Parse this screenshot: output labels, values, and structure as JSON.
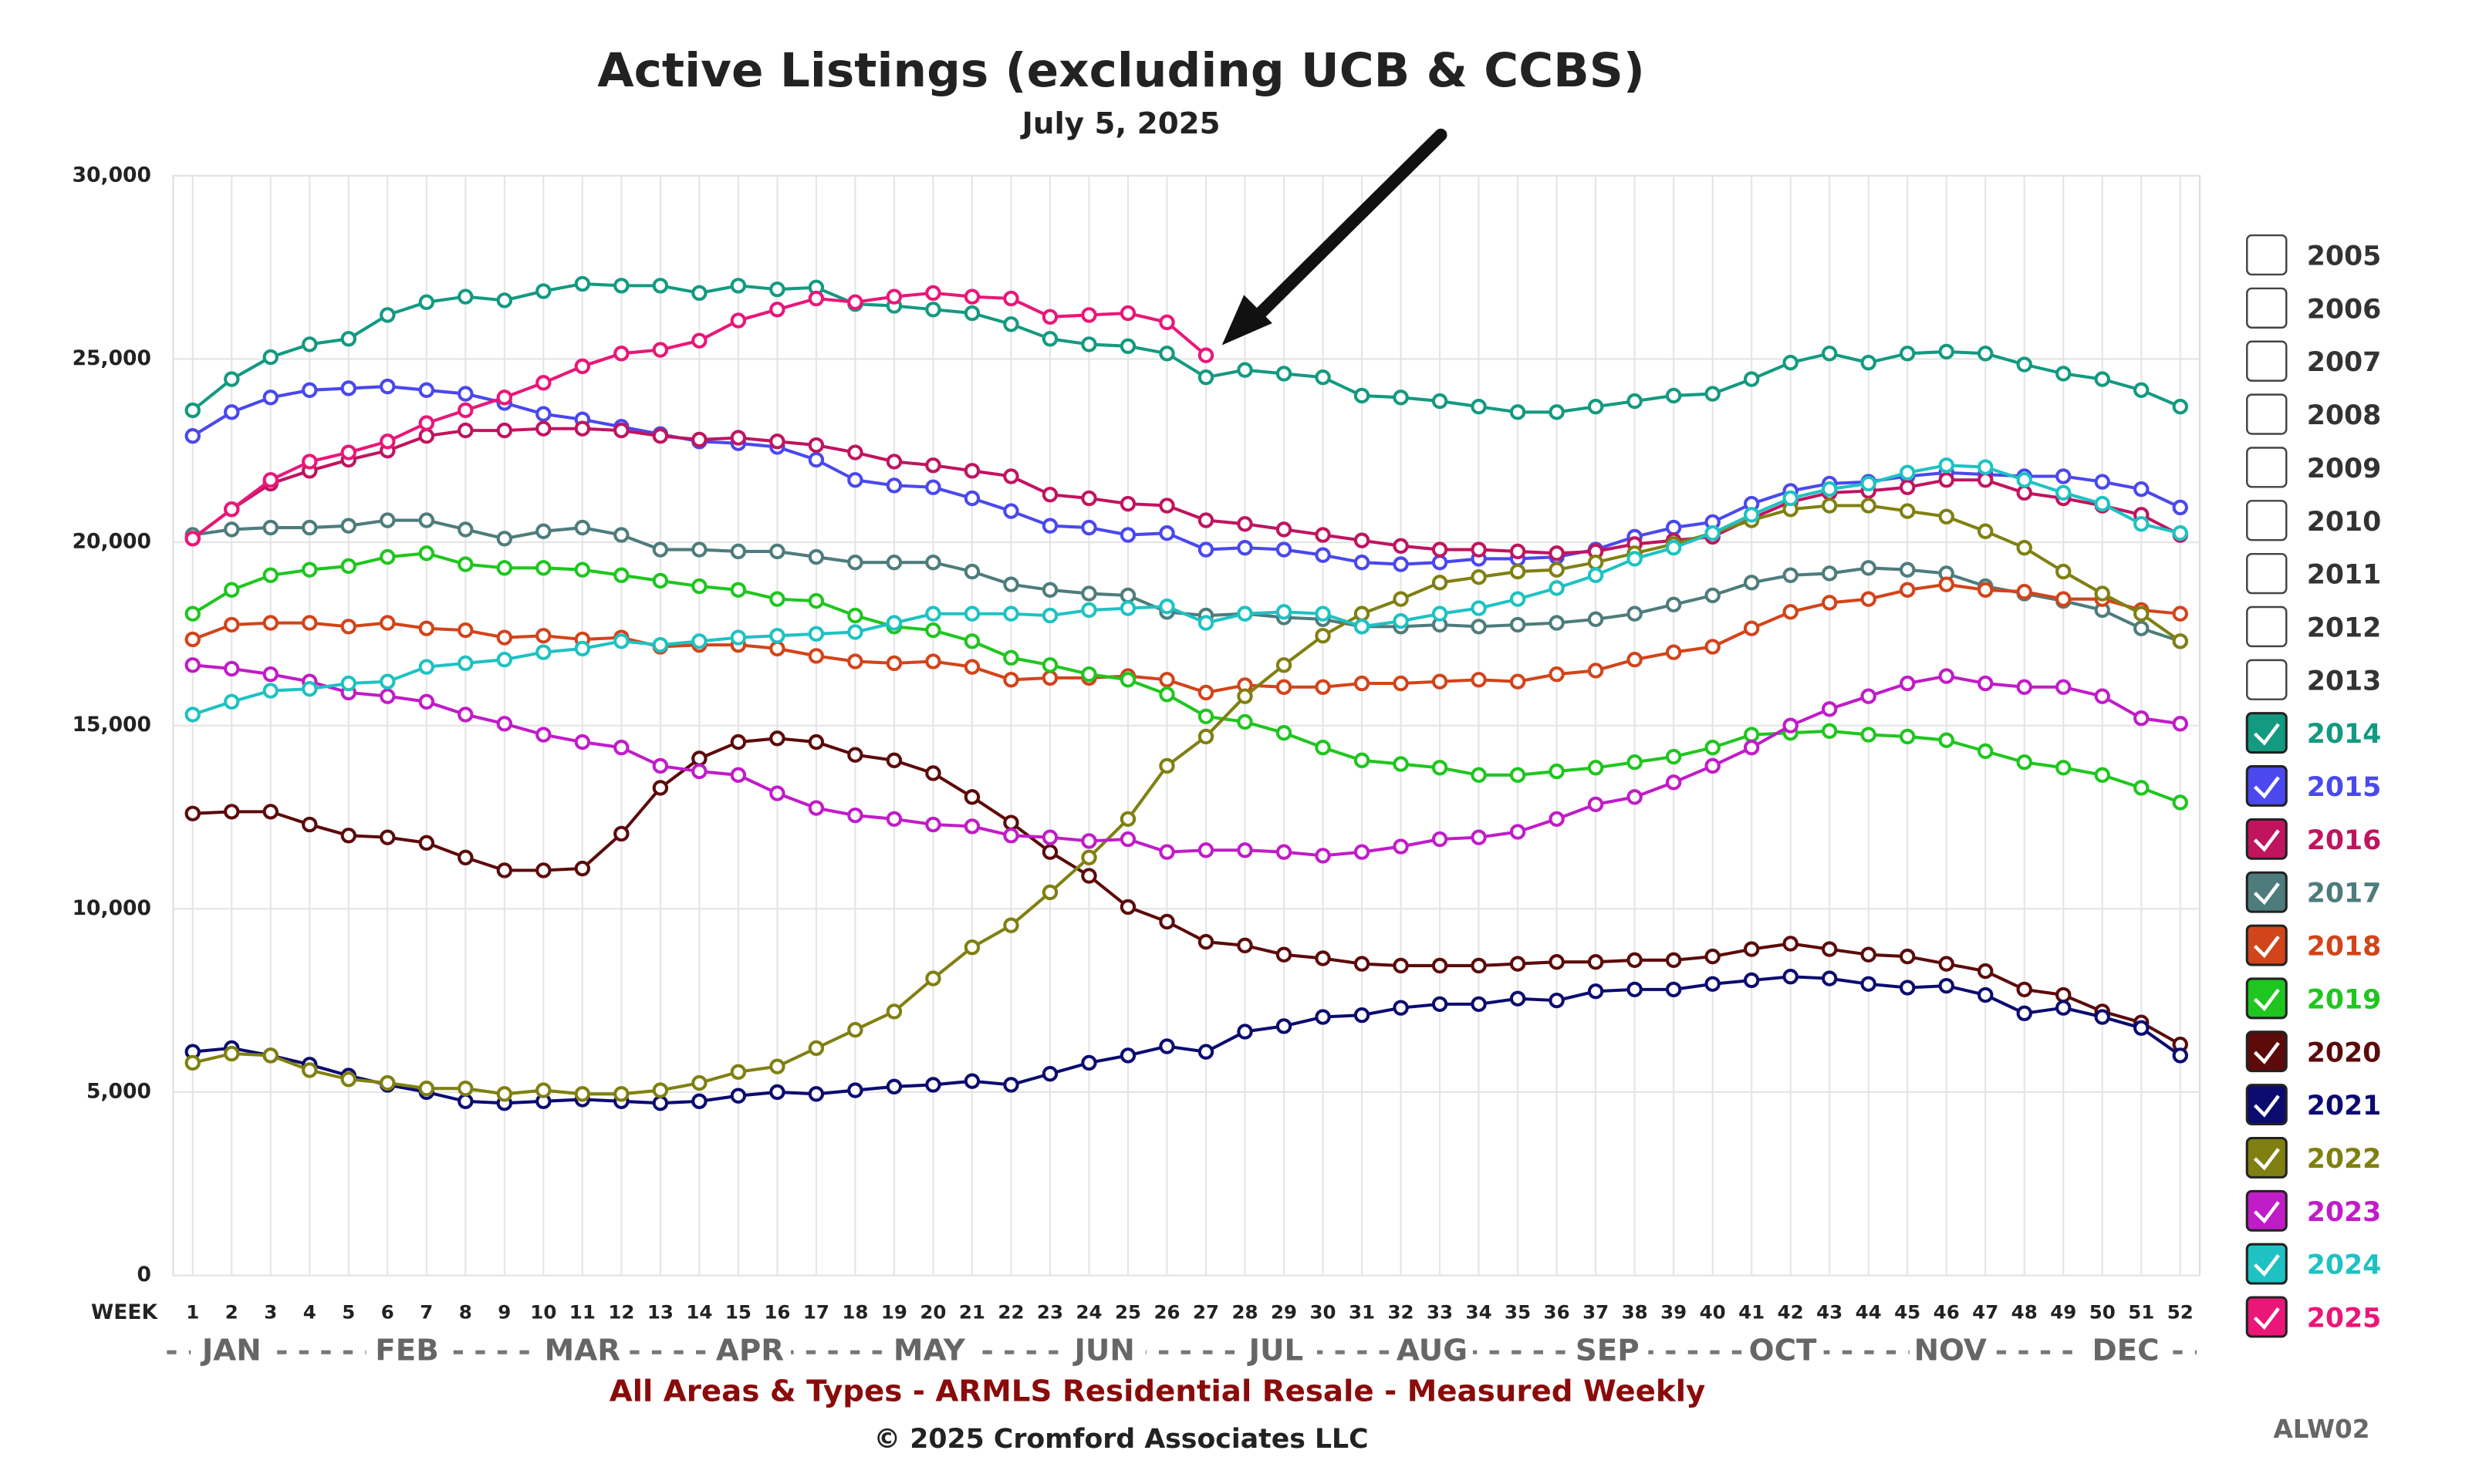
{
  "chart_data": {
    "type": "line",
    "title": "Active Listings (excluding UCB & CCBS)",
    "subtitle": "July 5, 2025",
    "x_axis_label": "WEEK",
    "months": [
      "JAN",
      "FEB",
      "MAR",
      "APR",
      "MAY",
      "JUN",
      "JUL",
      "AUG",
      "SEP",
      "OCT",
      "NOV",
      "DEC"
    ],
    "footer": "All Areas & Types - ARMLS Residential Resale - Measured Weekly",
    "copyright": "© 2025 Cromford Associates LLC",
    "code": "ALW02",
    "x": [
      1,
      2,
      3,
      4,
      5,
      6,
      7,
      8,
      9,
      10,
      11,
      12,
      13,
      14,
      15,
      16,
      17,
      18,
      19,
      20,
      21,
      22,
      23,
      24,
      25,
      26,
      27,
      28,
      29,
      30,
      31,
      32,
      33,
      34,
      35,
      36,
      37,
      38,
      39,
      40,
      41,
      42,
      43,
      44,
      45,
      46,
      47,
      48,
      49,
      50,
      51,
      52
    ],
    "xlim": [
      0.5,
      52.5
    ],
    "ylim": [
      0,
      30000
    ],
    "yticks": [
      0,
      {
        "value": 5000,
        "label": "5,000"
      },
      {
        "value": 10000,
        "label": "10,000"
      },
      {
        "value": 15000,
        "label": "15,000"
      },
      {
        "value": 20000,
        "label": "20,000"
      },
      {
        "value": 25000,
        "label": "25,000"
      },
      {
        "value": 30000,
        "label": "30,000"
      }
    ],
    "grid": true,
    "legend_unchecked": [
      "2005",
      "2006",
      "2007",
      "2008",
      "2009",
      "2010",
      "2011",
      "2012",
      "2013"
    ],
    "series": [
      {
        "name": "2014",
        "color": "#139a80",
        "values": [
          23600,
          24450,
          25050,
          25400,
          25550,
          26200,
          26550,
          26700,
          26600,
          26850,
          27050,
          27000,
          27000,
          26800,
          27000,
          26900,
          26950,
          26500,
          26450,
          26350,
          26250,
          25950,
          25550,
          25400,
          25350,
          25150,
          24500,
          24700,
          24600,
          24500,
          24000,
          23950,
          23850,
          23700,
          23550,
          23550,
          23700,
          23850,
          24000,
          24050,
          24450,
          24900,
          25150,
          24900,
          25150,
          25200,
          25150,
          24850,
          24600,
          24450,
          24150,
          23700
        ]
      },
      {
        "name": "2015",
        "color": "#4a48ee",
        "values": [
          22900,
          23550,
          23950,
          24150,
          24200,
          24250,
          24150,
          24050,
          23800,
          23500,
          23350,
          23150,
          22950,
          22750,
          22700,
          22600,
          22250,
          21700,
          21550,
          21500,
          21200,
          20850,
          20450,
          20400,
          20200,
          20250,
          19800,
          19850,
          19800,
          19650,
          19450,
          19400,
          19450,
          19550,
          19550,
          19600,
          19800,
          20150,
          20400,
          20550,
          21050,
          21400,
          21600,
          21650,
          21800,
          21900,
          21850,
          21800,
          21800,
          21650,
          21450,
          20950
        ]
      },
      {
        "name": "2016",
        "color": "#c0145f",
        "values": [
          20100,
          20900,
          21600,
          21950,
          22250,
          22500,
          22900,
          23050,
          23050,
          23100,
          23100,
          23050,
          22900,
          22800,
          22850,
          22750,
          22650,
          22450,
          22200,
          22100,
          21950,
          21800,
          21300,
          21200,
          21050,
          21000,
          20600,
          20500,
          20350,
          20200,
          20050,
          19900,
          19800,
          19800,
          19750,
          19700,
          19750,
          19950,
          20050,
          20150,
          20650,
          21100,
          21350,
          21400,
          21500,
          21700,
          21700,
          21350,
          21200,
          21000,
          20750,
          20200
        ]
      },
      {
        "name": "2017",
        "color": "#4e7c7c",
        "values": [
          20200,
          20350,
          20400,
          20400,
          20450,
          20600,
          20600,
          20350,
          20100,
          20300,
          20400,
          20200,
          19800,
          19800,
          19750,
          19750,
          19600,
          19450,
          19450,
          19450,
          19200,
          18850,
          18700,
          18600,
          18550,
          18100,
          18000,
          18050,
          17950,
          17900,
          17700,
          17700,
          17750,
          17700,
          17750,
          17800,
          17900,
          18050,
          18300,
          18550,
          18900,
          19100,
          19150,
          19300,
          19250,
          19150,
          18800,
          18600,
          18400,
          18150,
          17650,
          17300
        ]
      },
      {
        "name": "2018",
        "color": "#d2441a",
        "values": [
          17350,
          17750,
          17800,
          17800,
          17700,
          17800,
          17650,
          17600,
          17400,
          17450,
          17350,
          17400,
          17150,
          17200,
          17200,
          17100,
          16900,
          16750,
          16700,
          16750,
          16600,
          16250,
          16300,
          16300,
          16350,
          16250,
          15900,
          16100,
          16050,
          16050,
          16150,
          16150,
          16200,
          16250,
          16200,
          16400,
          16500,
          16800,
          17000,
          17150,
          17650,
          18100,
          18350,
          18450,
          18700,
          18850,
          18700,
          18650,
          18450,
          18450,
          18150,
          18050
        ]
      },
      {
        "name": "2019",
        "color": "#1fc61f",
        "values": [
          18050,
          18700,
          19100,
          19250,
          19350,
          19600,
          19700,
          19400,
          19300,
          19300,
          19250,
          19100,
          18950,
          18800,
          18700,
          18450,
          18400,
          18000,
          17700,
          17600,
          17300,
          16850,
          16650,
          16400,
          16250,
          15850,
          15250,
          15100,
          14800,
          14400,
          14050,
          13950,
          13850,
          13650,
          13650,
          13750,
          13850,
          14000,
          14150,
          14400,
          14750,
          14800,
          14850,
          14750,
          14700,
          14600,
          14300,
          14000,
          13850,
          13650,
          13300,
          12900
        ]
      },
      {
        "name": "2020",
        "color": "#5c0a0a",
        "values": [
          12600,
          12650,
          12650,
          12300,
          12000,
          11950,
          11800,
          11400,
          11050,
          11050,
          11100,
          12050,
          13300,
          14100,
          14550,
          14650,
          14550,
          14200,
          14050,
          13700,
          13050,
          12350,
          11550,
          10900,
          10050,
          9650,
          9100,
          9000,
          8750,
          8650,
          8500,
          8450,
          8450,
          8450,
          8500,
          8550,
          8550,
          8600,
          8600,
          8700,
          8900,
          9050,
          8900,
          8750,
          8700,
          8500,
          8300,
          7800,
          7650,
          7200,
          6900,
          6300
        ]
      },
      {
        "name": "2021",
        "color": "#0b0b70",
        "values": [
          6100,
          6200,
          6000,
          5750,
          5450,
          5200,
          5000,
          4750,
          4700,
          4750,
          4800,
          4750,
          4700,
          4750,
          4900,
          5000,
          4950,
          5050,
          5150,
          5200,
          5300,
          5200,
          5500,
          5800,
          6000,
          6250,
          6100,
          6650,
          6800,
          7050,
          7100,
          7300,
          7400,
          7400,
          7550,
          7500,
          7750,
          7800,
          7800,
          7950,
          8050,
          8150,
          8100,
          7950,
          7850,
          7900,
          7650,
          7150,
          7300,
          7050,
          6750,
          6000
        ]
      },
      {
        "name": "2022",
        "color": "#808012",
        "values": [
          5800,
          6050,
          6000,
          5600,
          5350,
          5250,
          5100,
          5100,
          4950,
          5050,
          4950,
          4950,
          5050,
          5250,
          5550,
          5700,
          6200,
          6700,
          7200,
          8100,
          8950,
          9550,
          10450,
          11400,
          12450,
          13900,
          14700,
          15800,
          16650,
          17450,
          18050,
          18450,
          18900,
          19050,
          19200,
          19250,
          19450,
          19700,
          19950,
          20250,
          20600,
          20900,
          21000,
          21000,
          20850,
          20700,
          20300,
          19850,
          19200,
          18600,
          18050,
          17300
        ]
      },
      {
        "name": "2023",
        "color": "#c01cc8",
        "values": [
          16650,
          16550,
          16400,
          16200,
          15900,
          15800,
          15650,
          15300,
          15050,
          14750,
          14550,
          14400,
          13900,
          13750,
          13650,
          13150,
          12750,
          12550,
          12450,
          12300,
          12250,
          12000,
          11950,
          11850,
          11900,
          11550,
          11600,
          11600,
          11550,
          11450,
          11550,
          11700,
          11900,
          11950,
          12100,
          12450,
          12850,
          13050,
          13450,
          13900,
          14400,
          15000,
          15450,
          15800,
          16150,
          16350,
          16150,
          16050,
          16050,
          15800,
          15200,
          15050
        ]
      },
      {
        "name": "2024",
        "color": "#1ec2c2",
        "values": [
          15300,
          15650,
          15950,
          16000,
          16150,
          16200,
          16600,
          16700,
          16800,
          17000,
          17100,
          17300,
          17200,
          17300,
          17400,
          17450,
          17500,
          17550,
          17800,
          18050,
          18050,
          18050,
          18000,
          18150,
          18200,
          18250,
          17800,
          18050,
          18100,
          18050,
          17700,
          17850,
          18050,
          18200,
          18450,
          18750,
          19100,
          19550,
          19850,
          20250,
          20750,
          21200,
          21450,
          21600,
          21900,
          22100,
          22050,
          21700,
          21350,
          21050,
          20500,
          20250
        ]
      },
      {
        "name": "2025",
        "color": "#ea1678",
        "values": [
          20100,
          20900,
          21700,
          22200,
          22450,
          22750,
          23250,
          23600,
          23950,
          24350,
          24800,
          25150,
          25250,
          25500,
          26050,
          26350,
          26650,
          26550,
          26700,
          26800,
          26700,
          26650,
          26150,
          26200,
          26250,
          26000,
          25100,
          null,
          null,
          null,
          null,
          null,
          null,
          null,
          null,
          null,
          null,
          null,
          null,
          null,
          null,
          null,
          null,
          null,
          null,
          null,
          null,
          null,
          null,
          null,
          null,
          null
        ]
      }
    ]
  }
}
